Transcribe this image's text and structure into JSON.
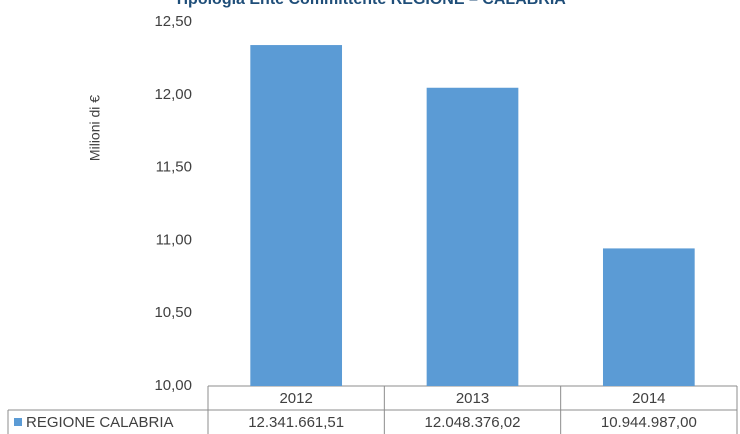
{
  "chart_data": {
    "type": "bar",
    "title": "Tipologia Ente Committente REGIONE – CALABRIA",
    "y_label": "Milioni di €",
    "categories": [
      "2012",
      "2013",
      "2014"
    ],
    "series": [
      {
        "name": "REGIONE CALABRIA",
        "color": "#5b9bd5",
        "values": [
          12.34166151,
          12.04837602,
          10.944987
        ],
        "value_labels": [
          "12.341.661,51",
          "12.048.376,02",
          "10.944.987,00"
        ]
      }
    ],
    "ylim": [
      10,
      12.5
    ],
    "yticks": [
      {
        "value": 10,
        "label": "10,00"
      },
      {
        "value": 10.5,
        "label": "10,50"
      },
      {
        "value": 11,
        "label": "11,00"
      },
      {
        "value": 11.5,
        "label": "11,50"
      },
      {
        "value": 12,
        "label": "12,00"
      },
      {
        "value": 12.5,
        "label": "12,50"
      }
    ],
    "grid": false
  }
}
